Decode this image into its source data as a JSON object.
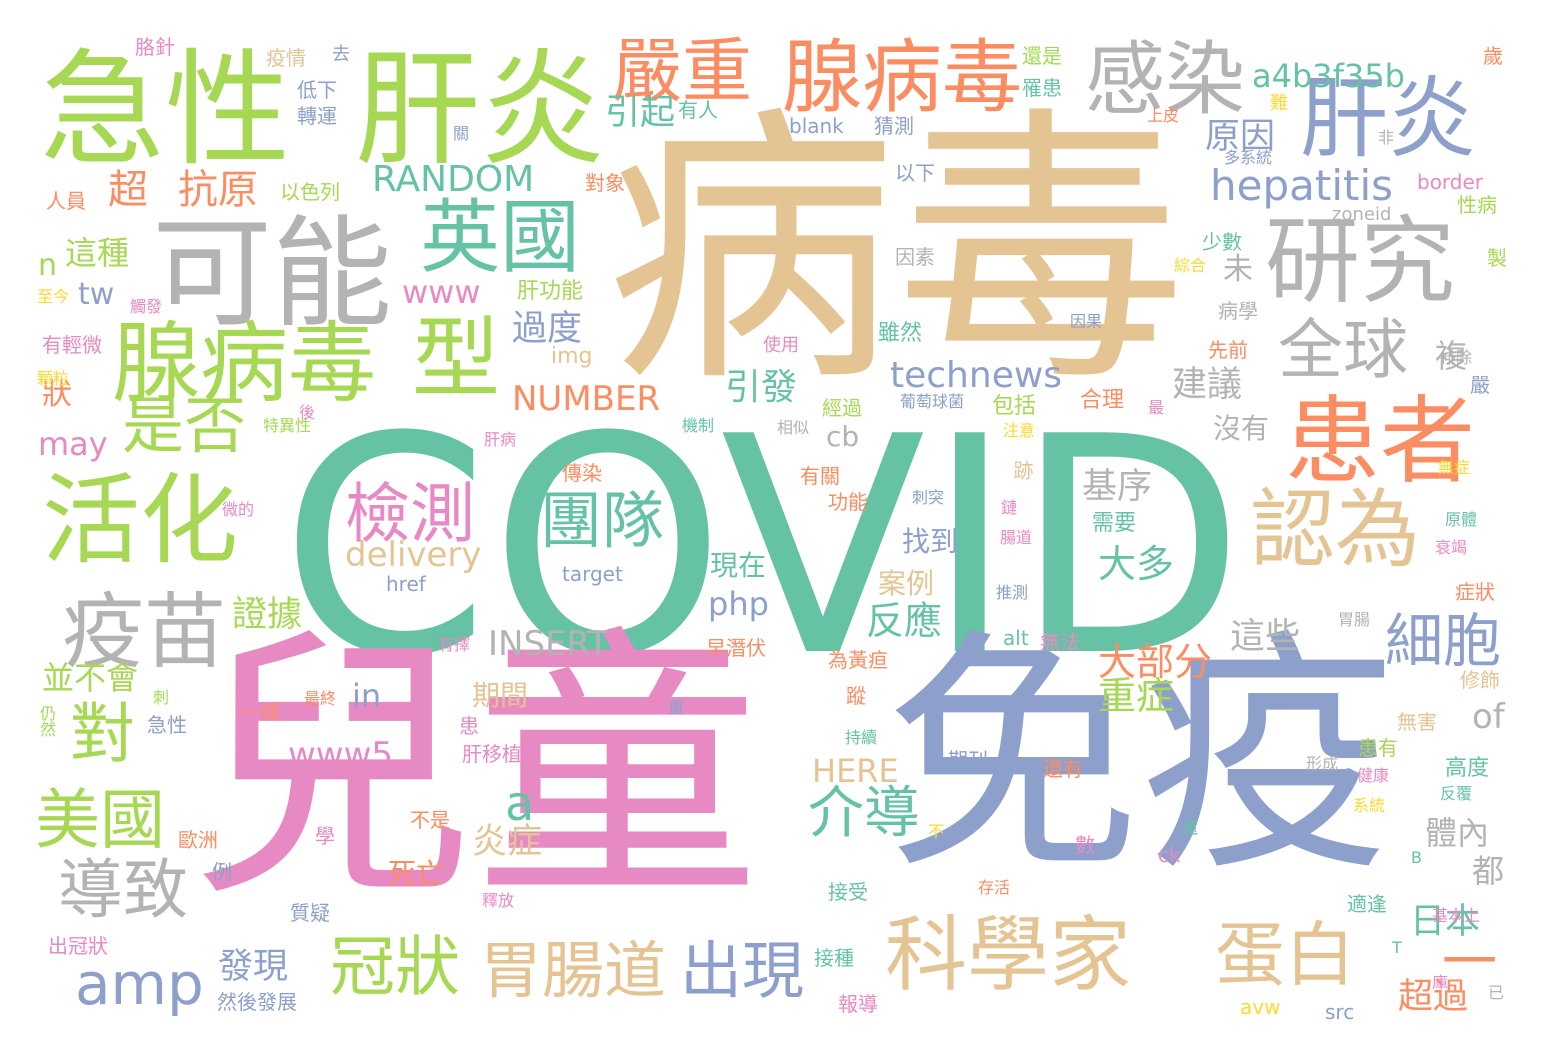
{
  "palette": {
    "teal": "#66c2a5",
    "orange": "#fc8d62",
    "blue": "#8da0cb",
    "pink": "#e78ac3",
    "green": "#a6d854",
    "yellow": "#ffd92f",
    "tan": "#e5c494",
    "gray": "#b3b3b3",
    "background": "#ffffff"
  },
  "words": [
    {
      "text": "COVID",
      "color": "teal"
    },
    {
      "text": "病毒",
      "color": "tan"
    },
    {
      "text": "兒童",
      "color": "pink"
    },
    {
      "text": "免疫",
      "color": "blue"
    },
    {
      "text": "急性",
      "color": "green"
    },
    {
      "text": "肝炎",
      "color": "green"
    },
    {
      "text": "可能",
      "color": "gray"
    },
    {
      "text": "腺病毒",
      "color": "orange"
    },
    {
      "text": "感染",
      "color": "gray"
    },
    {
      "text": "肝炎",
      "color": "blue"
    },
    {
      "text": "研究",
      "color": "gray"
    },
    {
      "text": "腺病毒",
      "color": "green"
    },
    {
      "text": "型",
      "color": "green"
    },
    {
      "text": "嚴重",
      "color": "orange"
    },
    {
      "text": "患者",
      "color": "orange"
    },
    {
      "text": "活化",
      "color": "green"
    },
    {
      "text": "英國",
      "color": "teal"
    },
    {
      "text": "認為",
      "color": "tan"
    },
    {
      "text": "科學家",
      "color": "tan"
    },
    {
      "text": "疫苗",
      "color": "gray"
    },
    {
      "text": "是否",
      "color": "green"
    },
    {
      "text": "全球",
      "color": "gray"
    },
    {
      "text": "蛋白",
      "color": "tan"
    },
    {
      "text": "檢測",
      "color": "pink"
    },
    {
      "text": "團隊",
      "color": "teal"
    },
    {
      "text": "對",
      "color": "green"
    },
    {
      "text": "美國",
      "color": "green"
    },
    {
      "text": "導致",
      "color": "gray"
    },
    {
      "text": "amp",
      "color": "blue"
    },
    {
      "text": "冠狀",
      "color": "green"
    },
    {
      "text": "胃腸道",
      "color": "tan"
    },
    {
      "text": "出現",
      "color": "blue"
    },
    {
      "text": "細胞",
      "color": "blue"
    },
    {
      "text": "介導",
      "color": "teal"
    },
    {
      "text": "hepatitis",
      "color": "blue"
    },
    {
      "text": "a4b3f35b",
      "color": "teal"
    },
    {
      "text": "超",
      "color": "orange"
    },
    {
      "text": "抗原",
      "color": "orange"
    },
    {
      "text": "RANDOM",
      "color": "teal"
    },
    {
      "text": "technews",
      "color": "blue"
    },
    {
      "text": "NUMBER",
      "color": "orange"
    },
    {
      "text": "INSERT",
      "color": "gray"
    },
    {
      "text": "delivery",
      "color": "tan"
    },
    {
      "text": "www",
      "color": "pink"
    },
    {
      "text": "www5",
      "color": "pink"
    },
    {
      "text": "php",
      "color": "blue"
    },
    {
      "text": "a",
      "color": "teal"
    },
    {
      "text": "in",
      "color": "blue"
    },
    {
      "text": "of",
      "color": "gray"
    },
    {
      "text": "cb",
      "color": "gray"
    },
    {
      "text": "HERE",
      "color": "tan"
    },
    {
      "text": "may",
      "color": "pink"
    },
    {
      "text": "tw",
      "color": "blue"
    },
    {
      "text": "n",
      "color": "green"
    },
    {
      "text": "一",
      "color": "orange"
    },
    {
      "text": "原因",
      "color": "blue"
    },
    {
      "text": "引起",
      "color": "teal"
    },
    {
      "text": "這種",
      "color": "green"
    },
    {
      "text": "過度",
      "color": "blue"
    },
    {
      "text": "引發",
      "color": "teal"
    },
    {
      "text": "反應",
      "color": "teal"
    },
    {
      "text": "大部分",
      "color": "orange"
    },
    {
      "text": "重症",
      "color": "green"
    },
    {
      "text": "炎症",
      "color": "tan"
    },
    {
      "text": "日本",
      "color": "teal"
    },
    {
      "text": "基序",
      "color": "gray"
    },
    {
      "text": "大多",
      "color": "teal"
    },
    {
      "text": "建議",
      "color": "gray"
    },
    {
      "text": "這些",
      "color": "gray"
    },
    {
      "text": "證據",
      "color": "green"
    },
    {
      "text": "發現",
      "color": "blue"
    },
    {
      "text": "超過",
      "color": "orange"
    },
    {
      "text": "體內",
      "color": "gray"
    },
    {
      "text": "複",
      "color": "gray"
    },
    {
      "text": "未",
      "color": "gray"
    },
    {
      "text": "狀",
      "color": "orange"
    },
    {
      "text": "都",
      "color": "gray"
    },
    {
      "text": "並不會",
      "color": "green"
    },
    {
      "text": "沒有",
      "color": "gray"
    },
    {
      "text": "找到",
      "color": "blue"
    },
    {
      "text": "期間",
      "color": "tan"
    },
    {
      "text": "死亡",
      "color": "orange"
    },
    {
      "text": "案例",
      "color": "tan"
    },
    {
      "text": "現在",
      "color": "teal"
    },
    {
      "text": "肝功能",
      "color": "green"
    },
    {
      "text": "img",
      "color": "tan"
    },
    {
      "text": "跡",
      "color": "tan"
    },
    {
      "text": "需要",
      "color": "teal"
    },
    {
      "text": "包括",
      "color": "green"
    },
    {
      "text": "合理",
      "color": "orange"
    },
    {
      "text": "高度",
      "color": "teal"
    },
    {
      "text": "雖然",
      "color": "teal"
    },
    {
      "text": "blank",
      "color": "blue"
    },
    {
      "text": "猜測",
      "color": "blue"
    },
    {
      "text": "有人",
      "color": "teal"
    },
    {
      "text": "以色列",
      "color": "green"
    },
    {
      "text": "對象",
      "color": "orange"
    },
    {
      "text": "人員",
      "color": "orange"
    },
    {
      "text": "轉運",
      "color": "blue"
    },
    {
      "text": "低下",
      "color": "blue"
    },
    {
      "text": "疫情",
      "color": "tan"
    },
    {
      "text": "去",
      "color": "blue"
    },
    {
      "text": "胳針",
      "color": "pink"
    },
    {
      "text": "還是",
      "color": "green"
    },
    {
      "text": "罹患",
      "color": "teal"
    },
    {
      "text": "歲",
      "color": "orange"
    },
    {
      "text": "難",
      "color": "yellow"
    },
    {
      "text": "上皮",
      "color": "orange"
    },
    {
      "text": "非",
      "color": "gray"
    },
    {
      "text": "多系統",
      "color": "blue"
    },
    {
      "text": "以下",
      "color": "blue"
    },
    {
      "text": "border",
      "color": "pink"
    },
    {
      "text": "zoneid",
      "color": "gray"
    },
    {
      "text": "性病",
      "color": "green"
    },
    {
      "text": "少數",
      "color": "teal"
    },
    {
      "text": "因素",
      "color": "gray"
    },
    {
      "text": "綜合",
      "color": "yellow"
    },
    {
      "text": "製",
      "color": "green"
    },
    {
      "text": "病學",
      "color": "gray"
    },
    {
      "text": "因果",
      "color": "blue"
    },
    {
      "text": "先前",
      "color": "orange"
    },
    {
      "text": "使用",
      "color": "pink"
    },
    {
      "text": "經過",
      "color": "green"
    },
    {
      "text": "葡萄球菌",
      "color": "blue"
    },
    {
      "text": "機制",
      "color": "teal"
    },
    {
      "text": "相似",
      "color": "gray"
    },
    {
      "text": "注意",
      "color": "yellow"
    },
    {
      "text": "無症",
      "color": "yellow"
    },
    {
      "text": "有關",
      "color": "orange"
    },
    {
      "text": "傳染",
      "color": "orange"
    },
    {
      "text": "功能",
      "color": "orange"
    },
    {
      "text": "刺突",
      "color": "blue"
    },
    {
      "text": "鏈",
      "color": "pink"
    },
    {
      "text": "腸道",
      "color": "pink"
    },
    {
      "text": "原體",
      "color": "teal"
    },
    {
      "text": "衰竭",
      "color": "pink"
    },
    {
      "text": "症狀",
      "color": "orange"
    },
    {
      "text": "胃腸",
      "color": "gray"
    },
    {
      "text": "target",
      "color": "blue"
    },
    {
      "text": "href",
      "color": "blue"
    },
    {
      "text": "推測",
      "color": "blue"
    },
    {
      "text": "早潛伏",
      "color": "orange"
    },
    {
      "text": "為黃疸",
      "color": "orange"
    },
    {
      "text": "alt",
      "color": "teal"
    },
    {
      "text": "無法",
      "color": "pink"
    },
    {
      "text": "修飾",
      "color": "tan"
    },
    {
      "text": "無害",
      "color": "tan"
    },
    {
      "text": "患有",
      "color": "green"
    },
    {
      "text": "還有",
      "color": "orange"
    },
    {
      "text": "期刊",
      "color": "blue"
    },
    {
      "text": "持續",
      "color": "teal"
    },
    {
      "text": "蹤",
      "color": "orange"
    },
    {
      "text": "一成",
      "color": "orange"
    },
    {
      "text": "最終",
      "color": "orange"
    },
    {
      "text": "毒素",
      "color": "pink"
    },
    {
      "text": "重",
      "color": "blue"
    },
    {
      "text": "患",
      "color": "pink"
    },
    {
      "text": "肝移植",
      "color": "pink"
    },
    {
      "text": "形成",
      "color": "gray"
    },
    {
      "text": "健康",
      "color": "pink"
    },
    {
      "text": "系統",
      "color": "yellow"
    },
    {
      "text": "反覆",
      "color": "teal"
    },
    {
      "text": "還",
      "color": "teal"
    },
    {
      "text": "數",
      "color": "pink"
    },
    {
      "text": "ck",
      "color": "pink"
    },
    {
      "text": "B",
      "color": "teal"
    },
    {
      "text": "不是",
      "color": "orange"
    },
    {
      "text": "學",
      "color": "pink"
    },
    {
      "text": "不",
      "color": "yellow"
    },
    {
      "text": "存活",
      "color": "orange"
    },
    {
      "text": "接受",
      "color": "teal"
    },
    {
      "text": "釋放",
      "color": "pink"
    },
    {
      "text": "質疑",
      "color": "blue"
    },
    {
      "text": "適逢",
      "color": "teal"
    },
    {
      "text": "基本上",
      "color": "pink"
    },
    {
      "text": "接種",
      "color": "teal"
    },
    {
      "text": "報導",
      "color": "pink"
    },
    {
      "text": "然後發展",
      "color": "blue"
    },
    {
      "text": "例",
      "color": "blue"
    },
    {
      "text": "出冠狀",
      "color": "pink"
    },
    {
      "text": "avw",
      "color": "yellow"
    },
    {
      "text": "src",
      "color": "blue"
    },
    {
      "text": "庫",
      "color": "pink"
    },
    {
      "text": "已",
      "color": "gray"
    },
    {
      "text": "T",
      "color": "teal"
    },
    {
      "text": "歐洲",
      "color": "orange"
    },
    {
      "text": "急性",
      "color": "blue"
    },
    {
      "text": "仍然",
      "color": "green"
    },
    {
      "text": "刺",
      "color": "green"
    },
    {
      "text": "有擇",
      "color": "pink"
    },
    {
      "text": "微的",
      "color": "pink"
    },
    {
      "text": "特異性",
      "color": "green"
    },
    {
      "text": "後",
      "color": "pink"
    },
    {
      "text": "顆粒",
      "color": "yellow"
    },
    {
      "text": "有輕微",
      "color": "pink"
    },
    {
      "text": "至今",
      "color": "yellow"
    },
    {
      "text": "觸發",
      "color": "pink"
    },
    {
      "text": "肝病",
      "color": "pink"
    },
    {
      "text": "最",
      "color": "pink"
    },
    {
      "text": "嚴",
      "color": "blue"
    },
    {
      "text": "排除",
      "color": "gray"
    },
    {
      "text": "關",
      "color": "blue"
    },
    {
      "text": "廣泛",
      "color": "teal"
    }
  ]
}
